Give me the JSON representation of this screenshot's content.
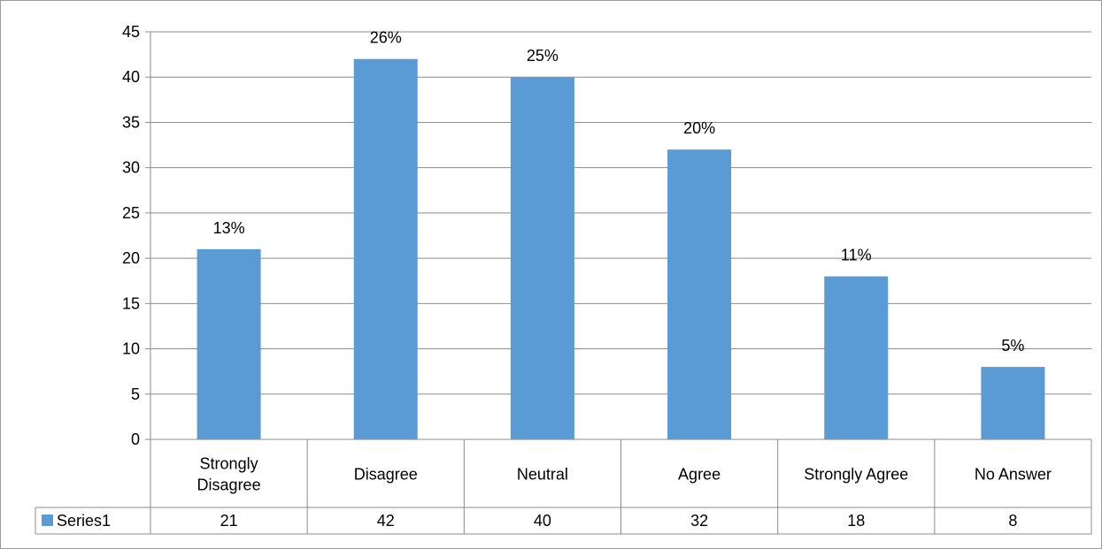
{
  "chart_data": {
    "type": "bar",
    "categories": [
      [
        "Strongly",
        "Disagree"
      ],
      [
        "Disagree"
      ],
      [
        "Neutral"
      ],
      [
        "Agree"
      ],
      [
        "Strongly Agree"
      ],
      [
        "No Answer"
      ]
    ],
    "series": [
      {
        "name": "Series1",
        "values": [
          21,
          42,
          40,
          32,
          18,
          8
        ],
        "data_labels": [
          "13%",
          "26%",
          "25%",
          "20%",
          "11%",
          "5%"
        ],
        "color": "#5b9bd5"
      }
    ],
    "ylim": [
      0,
      45
    ],
    "yticks": [
      0,
      5,
      10,
      15,
      20,
      25,
      30,
      35,
      40,
      45
    ],
    "grid": true,
    "legend": "data-table-left",
    "data_table": true,
    "title": "",
    "xlabel": "",
    "ylabel": ""
  }
}
